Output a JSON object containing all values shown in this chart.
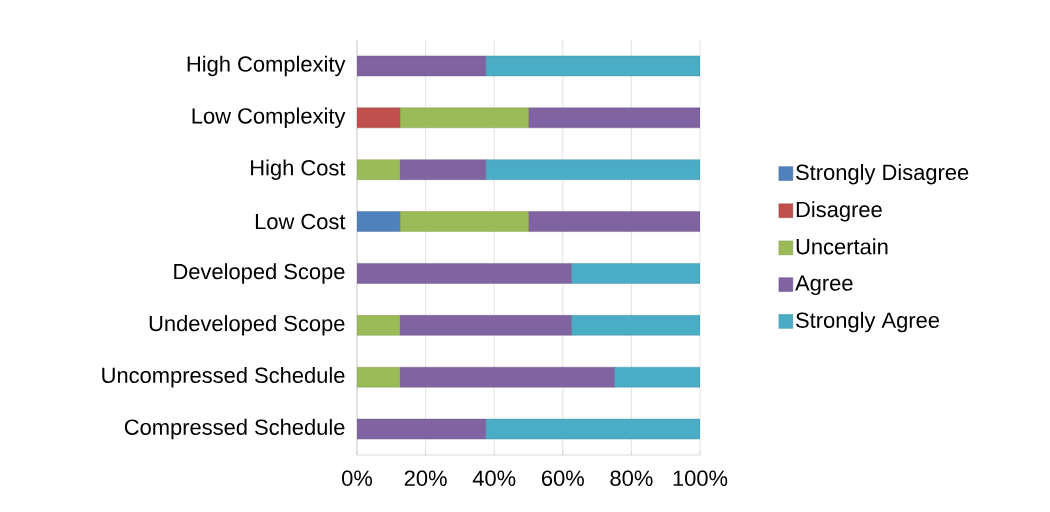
{
  "chart_data": {
    "type": "bar",
    "orientation": "horizontal",
    "stacked": true,
    "categories": [
      "High Complexity",
      "Low Complexity",
      "High Cost",
      "Low Cost",
      "Developed Scope",
      "Undeveloped Scope",
      "Uncompressed Schedule",
      "Compressed Schedule"
    ],
    "series": [
      {
        "name": "Strongly Disagree",
        "color": "#4f81bd",
        "values": [
          0,
          0,
          0,
          12.5,
          0,
          0,
          0,
          0
        ]
      },
      {
        "name": "Disagree",
        "color": "#c0504d",
        "values": [
          0,
          12.5,
          0,
          0,
          0,
          0,
          0,
          0
        ]
      },
      {
        "name": "Uncertain",
        "color": "#9bbb59",
        "values": [
          0,
          37.5,
          12.5,
          37.5,
          0,
          12.5,
          12.5,
          0
        ]
      },
      {
        "name": "Agree",
        "color": "#8064a2",
        "values": [
          37.5,
          50,
          25,
          50,
          62.5,
          50,
          62.5,
          37.5
        ]
      },
      {
        "name": "Strongly Agree",
        "color": "#4bacc6",
        "values": [
          62.5,
          0,
          62.5,
          0,
          37.5,
          37.5,
          25,
          62.5
        ]
      }
    ],
    "xlim": [
      0,
      100
    ],
    "xticks": [
      {
        "value": 0,
        "label": "0%"
      },
      {
        "value": 20,
        "label": "20%"
      },
      {
        "value": 40,
        "label": "40%"
      },
      {
        "value": 60,
        "label": "60%"
      },
      {
        "value": 80,
        "label": "80%"
      },
      {
        "value": 100,
        "label": "100%"
      }
    ],
    "grid": "x",
    "legend": "right"
  }
}
